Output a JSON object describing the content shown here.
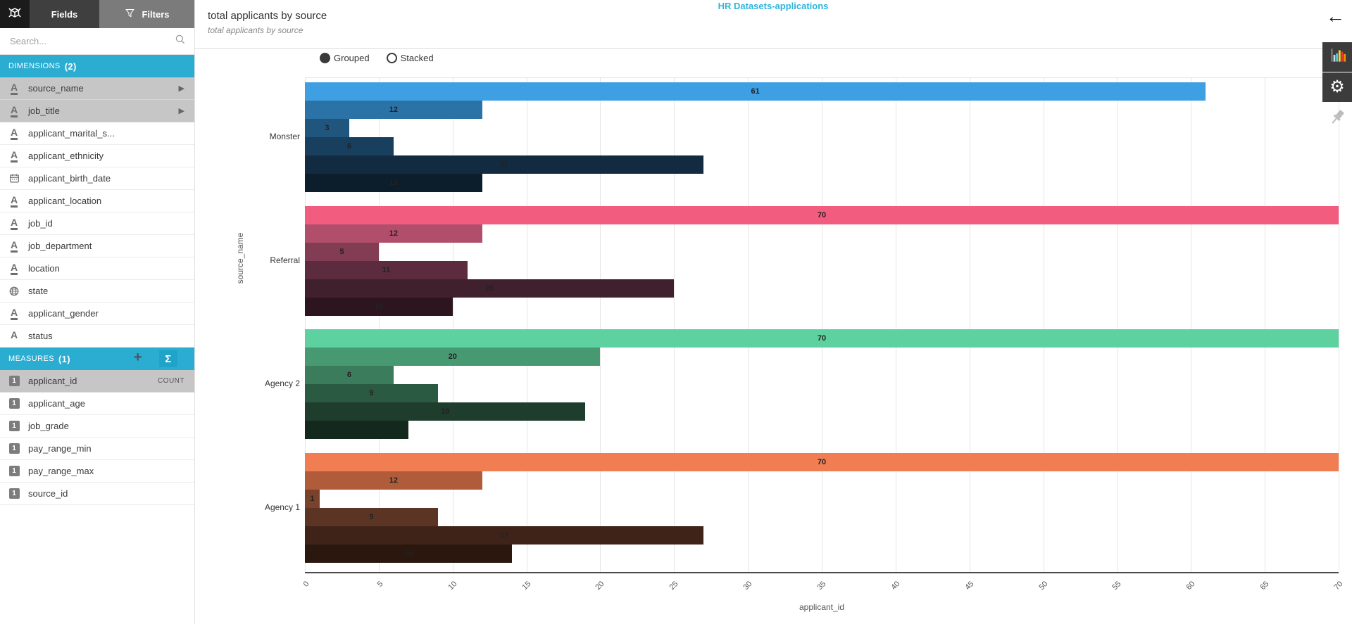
{
  "header": {
    "title": "HR Datasets-applications"
  },
  "icons": {
    "back_arrow": "←",
    "gear": "⚙",
    "sigma": "Σ",
    "add_measure": "+",
    "expand_arrow": "▶",
    "search": "svg-magnifier",
    "filters_funnel": "svg-funnel",
    "data_cube": "svg-cube",
    "date_field": "svg-calendar",
    "geo_field": "svg-globe",
    "chart_type": "svg-colored-bar-chart",
    "pin": "svg-pushpin"
  },
  "colors": {
    "accent_blue": "#2bacd1",
    "title_blue": "#2eb4dc",
    "selected_row": "#c6c6c6",
    "tab_active": "#3f3f3f",
    "tab_inactive": "#7b7b7b",
    "icon_panel": "#3c3c3c"
  },
  "sidebar": {
    "tabs": [
      {
        "label": "Fields"
      },
      {
        "label": "Filters"
      }
    ],
    "search_placeholder": "Search...",
    "dimensions": {
      "label": "DIMENSIONS",
      "count": "(2)",
      "items": [
        {
          "name": "source_name",
          "type": "text",
          "selected": true,
          "expandable": true
        },
        {
          "name": "job_title",
          "type": "text",
          "selected": true,
          "expandable": true
        },
        {
          "name": "applicant_marital_s...",
          "type": "text"
        },
        {
          "name": "applicant_ethnicity",
          "type": "text"
        },
        {
          "name": "applicant_birth_date",
          "type": "date"
        },
        {
          "name": "applicant_location",
          "type": "text"
        },
        {
          "name": "job_id",
          "type": "text"
        },
        {
          "name": "job_department",
          "type": "text"
        },
        {
          "name": "location",
          "type": "text"
        },
        {
          "name": "state",
          "type": "geo"
        },
        {
          "name": "applicant_gender",
          "type": "text"
        },
        {
          "name": "status",
          "type": "string"
        }
      ]
    },
    "measures": {
      "label": "MEASURES",
      "count": "(1)",
      "items": [
        {
          "name": "applicant_id",
          "type": "number",
          "selected": true,
          "badge": "COUNT"
        },
        {
          "name": "applicant_age",
          "type": "number"
        },
        {
          "name": "job_grade",
          "type": "number"
        },
        {
          "name": "pay_range_min",
          "type": "number"
        },
        {
          "name": "pay_range_max",
          "type": "number"
        },
        {
          "name": "source_id",
          "type": "number"
        }
      ]
    }
  },
  "chart_header": {
    "title": "total applicants by source",
    "subtitle": "total applicants by source",
    "modes": [
      {
        "label": "Grouped",
        "selected": true
      },
      {
        "label": "Stacked",
        "selected": false
      }
    ]
  },
  "chart_data": {
    "type": "bar",
    "orientation": "horizontal",
    "title": "total applicants by source",
    "subtitle": "total applicants by source",
    "xlabel": "applicant_id",
    "ylabel": "source_name",
    "xlim": [
      0,
      70
    ],
    "xticks": [
      0,
      5,
      10,
      15,
      20,
      25,
      30,
      35,
      40,
      45,
      50,
      55,
      60,
      65,
      70
    ],
    "grid": true,
    "legend": "none",
    "mode": "Grouped",
    "categories": [
      "Monster",
      "Referral",
      "Agency 2",
      "Agency 1"
    ],
    "groups": [
      {
        "category": "Monster",
        "values": [
          61,
          12,
          3,
          6,
          27,
          12
        ],
        "colors": [
          "#3e9fe3",
          "#2b73a7",
          "#20567e",
          "#183f5d",
          "#122b41",
          "#0c1d2b"
        ]
      },
      {
        "category": "Referral",
        "values": [
          70,
          12,
          5,
          11,
          25,
          10
        ],
        "colors": [
          "#f15c7f",
          "#b14e6b",
          "#823d54",
          "#5c2b3e",
          "#41202d",
          "#2d151f"
        ]
      },
      {
        "category": "Agency 2",
        "values": [
          70,
          20,
          6,
          9,
          19,
          7
        ],
        "colors": [
          "#5ed1a0",
          "#479972",
          "#3a7c5b",
          "#2b5a42",
          "#1e3d2c",
          "#14291d"
        ]
      },
      {
        "category": "Agency 1",
        "values": [
          70,
          12,
          1,
          9,
          27,
          14
        ],
        "colors": [
          "#f17d53",
          "#b05b3a",
          "#7a422b",
          "#5c3424",
          "#402318",
          "#2a180f"
        ]
      }
    ]
  }
}
